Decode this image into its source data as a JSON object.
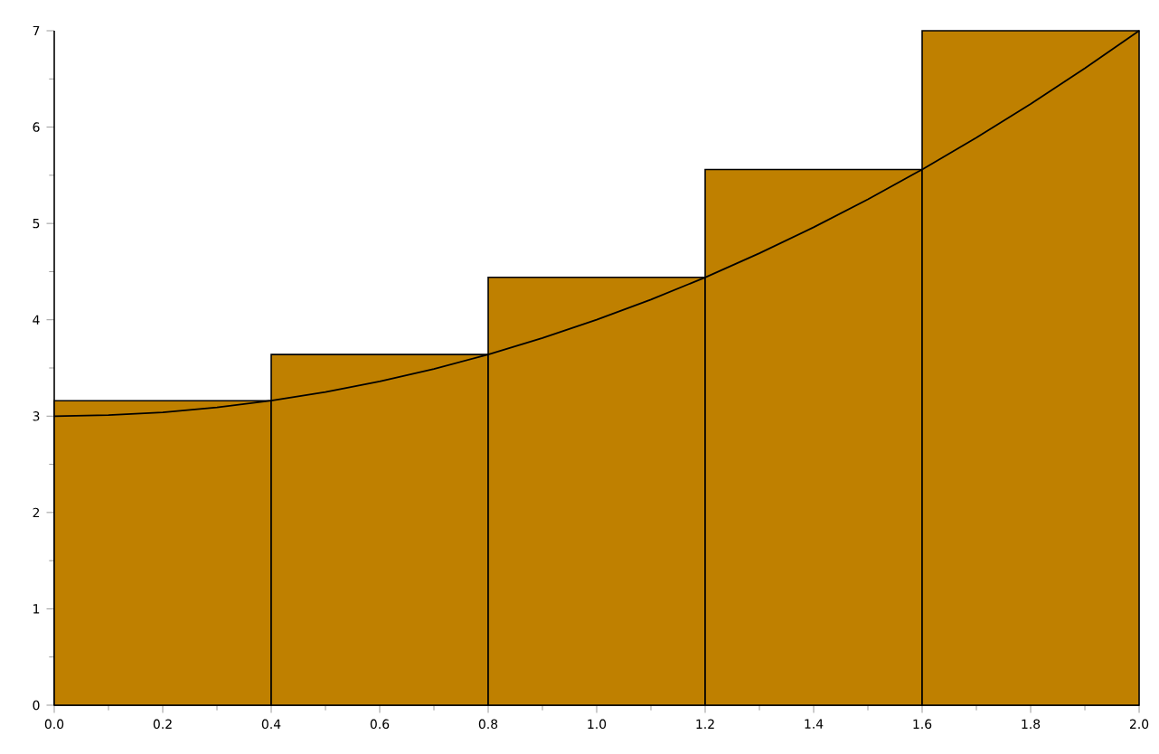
{
  "chart_data": {
    "type": "histogram",
    "bins": [
      0.0,
      0.4,
      0.8,
      1.2,
      1.6,
      2.0
    ],
    "values": [
      3.16,
      3.64,
      4.44,
      5.56,
      7.0
    ],
    "color": "#bf8000",
    "series": [
      {
        "type": "line",
        "color": "#000000",
        "x": [
          0.0,
          0.1,
          0.2,
          0.3,
          0.4,
          0.5,
          0.6,
          0.7,
          0.8,
          0.9,
          1.0,
          1.1,
          1.2,
          1.3,
          1.4,
          1.5,
          1.6,
          1.7,
          1.8,
          1.9,
          2.0
        ],
        "values": [
          3.0,
          3.01,
          3.04,
          3.09,
          3.16,
          3.25,
          3.36,
          3.49,
          3.64,
          3.81,
          4.0,
          4.21,
          4.44,
          4.69,
          4.96,
          5.25,
          5.56,
          5.89,
          6.24,
          6.61,
          7.0
        ]
      }
    ],
    "xlim": [
      0.0,
      2.0
    ],
    "ylim": [
      0,
      7
    ],
    "xticks": [
      {
        "value": 0.0,
        "label": "0.0"
      },
      0.2,
      0.4,
      0.6,
      0.8,
      {
        "value": 1.0,
        "label": "1.0"
      },
      1.2,
      1.4,
      1.6,
      1.8,
      {
        "value": 2.0,
        "label": "2.0"
      }
    ],
    "yticks": [
      0,
      1,
      2,
      3,
      4,
      5,
      6,
      7
    ]
  }
}
